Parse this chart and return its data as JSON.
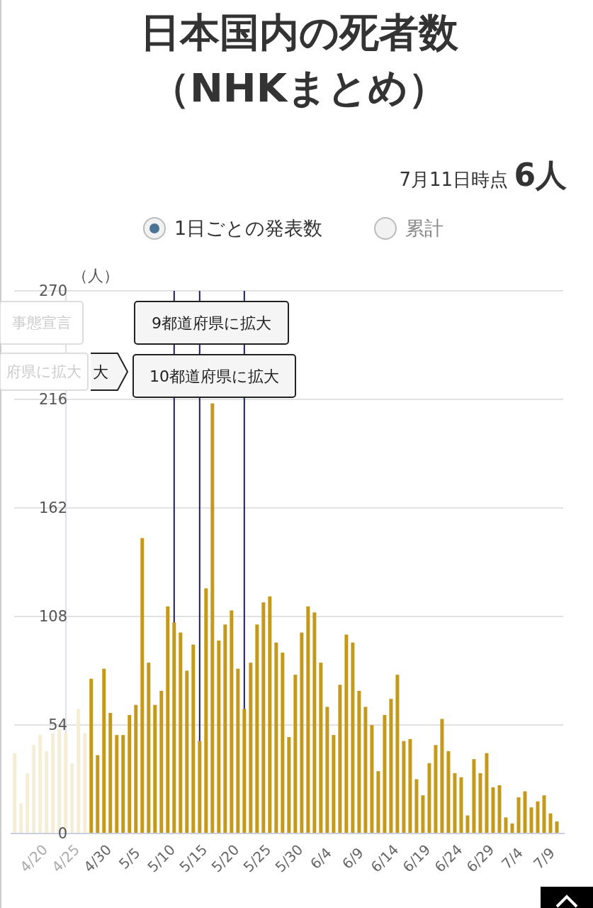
{
  "chart_data": {
    "type": "bar",
    "title": "日本国内の死者数（NHKまとめ）",
    "subtitle": "7月11日時点 6人",
    "ylabel": "（人）",
    "x": [
      "--04-17",
      "--04-18",
      "--04-19",
      "--04-20",
      "--04-21",
      "--04-22",
      "--04-23",
      "--04-24",
      "--04-25",
      "--04-26",
      "--04-27",
      "--04-28",
      "--04-29",
      "--04-30",
      "--05-01",
      "--05-02",
      "--05-03",
      "--05-04",
      "--05-05",
      "--05-06",
      "--05-07",
      "--05-08",
      "--05-09",
      "--05-10",
      "--05-11",
      "--05-12",
      "--05-13",
      "--05-14",
      "--05-15",
      "--05-16",
      "--05-17",
      "--05-18",
      "--05-19",
      "--05-20",
      "--05-21",
      "--05-22",
      "--05-23",
      "--05-24",
      "--05-25",
      "--05-26",
      "--05-27",
      "--05-28",
      "--05-29",
      "--05-30",
      "--05-31",
      "--06-01",
      "--06-02",
      "--06-03",
      "--06-04",
      "--06-05",
      "--06-06",
      "--06-07",
      "--06-08",
      "--06-09",
      "--06-10",
      "--06-11",
      "--06-12",
      "--06-13",
      "--06-14",
      "--06-15",
      "--06-16",
      "--06-17",
      "--06-18",
      "--06-19",
      "--06-20",
      "--06-21",
      "--06-22",
      "--06-23",
      "--06-24",
      "--06-25",
      "--06-26",
      "--06-27",
      "--06-28",
      "--06-29",
      "--06-30",
      "--07-01",
      "--07-02",
      "--07-03",
      "--07-04",
      "--07-05",
      "--07-06",
      "--07-07",
      "--07-08",
      "--07-09",
      "--07-10",
      "--07-11"
    ],
    "values": [
      40,
      15,
      30,
      44,
      49,
      41,
      50,
      52,
      50,
      35,
      62,
      50,
      77,
      39,
      82,
      60,
      49,
      49,
      59,
      64,
      147,
      85,
      64,
      71,
      113,
      105,
      100,
      81,
      94,
      46,
      122,
      214,
      96,
      104,
      111,
      82,
      62,
      85,
      104,
      115,
      118,
      95,
      90,
      48,
      79,
      100,
      113,
      110,
      85,
      63,
      49,
      74,
      99,
      95,
      71,
      63,
      54,
      31,
      59,
      67,
      79,
      46,
      47,
      27,
      19,
      35,
      44,
      57,
      41,
      30,
      28,
      9,
      37,
      30,
      40,
      23,
      24,
      8,
      5,
      18,
      21,
      13,
      16,
      19,
      10,
      6
    ],
    "colors": [
      "#f4eed6",
      "#f4eed6",
      "#f4eed6",
      "#f4eed6",
      "#f4eed6",
      "#f4eed6",
      "#f4eed6",
      "#f4eed6",
      "#f4eed6",
      "#f4eed6",
      "#f4eed6",
      "#f4eed6",
      "#c59a1b",
      "#c59a1b",
      "#c59a1b",
      "#c59a1b",
      "#c59a1b",
      "#c59a1b",
      "#c59a1b",
      "#c59a1b",
      "#c59a1b",
      "#c59a1b",
      "#c59a1b",
      "#c59a1b",
      "#c59a1b",
      "#c59a1b",
      "#c59a1b",
      "#c59a1b",
      "#c59a1b",
      "#c59a1b",
      "#c59a1b",
      "#c59a1b",
      "#c59a1b",
      "#c59a1b",
      "#c59a1b",
      "#c59a1b",
      "#c59a1b",
      "#c59a1b",
      "#c59a1b",
      "#c59a1b",
      "#c59a1b",
      "#c59a1b",
      "#c59a1b",
      "#c59a1b",
      "#c59a1b",
      "#c59a1b",
      "#c59a1b",
      "#c59a1b",
      "#c59a1b",
      "#c59a1b",
      "#c59a1b",
      "#c59a1b",
      "#c59a1b",
      "#c59a1b",
      "#c59a1b",
      "#c59a1b",
      "#c59a1b",
      "#c59a1b",
      "#c59a1b",
      "#c59a1b",
      "#c59a1b",
      "#c59a1b",
      "#c59a1b",
      "#c59a1b",
      "#c59a1b",
      "#c59a1b",
      "#c59a1b",
      "#c59a1b",
      "#c59a1b",
      "#c59a1b",
      "#c59a1b",
      "#c59a1b",
      "#c59a1b",
      "#c59a1b",
      "#c59a1b",
      "#c59a1b",
      "#c59a1b",
      "#c59a1b",
      "#c59a1b",
      "#c59a1b",
      "#c59a1b",
      "#c59a1b",
      "#c59a1b",
      "#c59a1b",
      "#c59a1b",
      "#c59a1b"
    ],
    "xlim": [
      "--04-17",
      "--07-11"
    ],
    "xticks": [
      {
        "value": "--04-20",
        "label": "4/20"
      },
      {
        "value": "--04-25",
        "label": "4/25"
      },
      {
        "value": "--04-30",
        "label": "4/30"
      },
      {
        "value": "--05-05",
        "label": "5/5"
      },
      {
        "value": "--05-10",
        "label": "5/10"
      },
      {
        "value": "--05-15",
        "label": "5/15"
      },
      {
        "value": "--05-20",
        "label": "5/20"
      },
      {
        "value": "--05-25",
        "label": "5/25"
      },
      {
        "value": "--05-30",
        "label": "5/30"
      },
      {
        "value": "--06-04",
        "label": "6/4"
      },
      {
        "value": "--06-09",
        "label": "6/9"
      },
      {
        "value": "--06-14",
        "label": "6/14"
      },
      {
        "value": "--06-19",
        "label": "6/19"
      },
      {
        "value": "--06-24",
        "label": "6/24"
      },
      {
        "value": "--06-29",
        "label": "6/29"
      },
      {
        "value": "--07-04",
        "label": "7/4"
      },
      {
        "value": "--07-09",
        "label": "7/9"
      }
    ],
    "ylim": [
      0,
      270
    ],
    "yticks": [
      0,
      54,
      108,
      162,
      216,
      270
    ],
    "grid": "y",
    "ref_lines": [
      {
        "axis": "x",
        "value": "--05-12",
        "color": "#1c1c5e"
      },
      {
        "axis": "x",
        "value": "--05-16",
        "color": "#1c1c5e"
      },
      {
        "axis": "x",
        "value": "--05-23",
        "color": "#1c1c5e"
      }
    ],
    "annotations": [
      "事態宣言",
      "府県に拡大",
      "大",
      "9都道府県に拡大",
      "10都道府県に拡大",
      "1日ごとの発表数",
      "累計"
    ]
  }
}
